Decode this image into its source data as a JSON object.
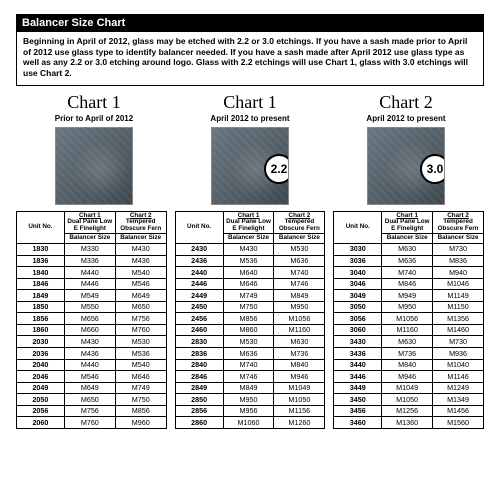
{
  "title": "Balancer Size Chart",
  "intro": "Beginning in April of 2012, glass may be etched with 2.2 or 3.0 etchings. If you have a sash made prior to April of 2012 use glass type to identify balancer needed. If you have a sash made after April 2012 use glass type as well as any 2.2 or 3.0 etching around logo. Glass with 2.2 etchings will use Chart 1, glass with 3.0 etchings will use Chart 2.",
  "chart_cards": [
    {
      "title": "Chart 1",
      "sub": "Prior to April of 2012",
      "badge": ""
    },
    {
      "title": "Chart 1",
      "sub": "April 2012 to present",
      "badge": "2.2"
    },
    {
      "title": "Chart 2",
      "sub": "April 2012 to present",
      "badge": "3.0"
    }
  ],
  "header": {
    "unit": "Unit No.",
    "chart1_top": "Chart 1",
    "chart2_top": "Chart 2",
    "chart1_desc": "Dual Pane Low E Finelight",
    "chart2_desc": "Tempered Obscure Fern",
    "bal": "Balancer Size"
  },
  "groups": [
    {
      "rows": [
        {
          "u": "1830",
          "a": "M330",
          "b": "M430"
        },
        {
          "u": "1836",
          "a": "M336",
          "b": "M436"
        },
        {
          "u": "1840",
          "a": "M440",
          "b": "M540"
        },
        {
          "u": "1846",
          "a": "M446",
          "b": "M546"
        },
        {
          "u": "1849",
          "a": "M549",
          "b": "M649"
        },
        {
          "u": "1850",
          "a": "M550",
          "b": "M650"
        },
        {
          "u": "1856",
          "a": "M656",
          "b": "M756"
        },
        {
          "u": "1860",
          "a": "M660",
          "b": "M760"
        },
        {
          "u": "2030",
          "a": "M430",
          "b": "M530"
        },
        {
          "u": "2036",
          "a": "M436",
          "b": "M536"
        },
        {
          "u": "2040",
          "a": "M440",
          "b": "M540"
        },
        {
          "u": "2046",
          "a": "M546",
          "b": "M646"
        },
        {
          "u": "2049",
          "a": "M649",
          "b": "M749"
        },
        {
          "u": "2050",
          "a": "M650",
          "b": "M750"
        },
        {
          "u": "2056",
          "a": "M756",
          "b": "M856"
        },
        {
          "u": "2060",
          "a": "M760",
          "b": "M960"
        }
      ]
    },
    {
      "rows": [
        {
          "u": "2430",
          "a": "M430",
          "b": "M530"
        },
        {
          "u": "2436",
          "a": "M536",
          "b": "M636"
        },
        {
          "u": "2440",
          "a": "M640",
          "b": "M740"
        },
        {
          "u": "2446",
          "a": "M646",
          "b": "M746"
        },
        {
          "u": "2449",
          "a": "M749",
          "b": "M849"
        },
        {
          "u": "2450",
          "a": "M750",
          "b": "M950"
        },
        {
          "u": "2456",
          "a": "M856",
          "b": "M1056"
        },
        {
          "u": "2460",
          "a": "M860",
          "b": "M1160"
        },
        {
          "u": "2830",
          "a": "M530",
          "b": "M630"
        },
        {
          "u": "2836",
          "a": "M636",
          "b": "M736"
        },
        {
          "u": "2840",
          "a": "M740",
          "b": "M840"
        },
        {
          "u": "2846",
          "a": "M746",
          "b": "M946"
        },
        {
          "u": "2849",
          "a": "M849",
          "b": "M1049"
        },
        {
          "u": "2850",
          "a": "M950",
          "b": "M1050"
        },
        {
          "u": "2856",
          "a": "M956",
          "b": "M1156"
        },
        {
          "u": "2860",
          "a": "M1060",
          "b": "M1260"
        }
      ]
    },
    {
      "rows": [
        {
          "u": "3030",
          "a": "M630",
          "b": "M730"
        },
        {
          "u": "3036",
          "a": "M636",
          "b": "M836"
        },
        {
          "u": "3040",
          "a": "M740",
          "b": "M940"
        },
        {
          "u": "3046",
          "a": "M846",
          "b": "M1046"
        },
        {
          "u": "3049",
          "a": "M949",
          "b": "M1149"
        },
        {
          "u": "3050",
          "a": "M950",
          "b": "M1150"
        },
        {
          "u": "3056",
          "a": "M1056",
          "b": "M1356"
        },
        {
          "u": "3060",
          "a": "M1160",
          "b": "M1460"
        },
        {
          "u": "3430",
          "a": "M630",
          "b": "M730"
        },
        {
          "u": "3436",
          "a": "M736",
          "b": "M936"
        },
        {
          "u": "3440",
          "a": "M840",
          "b": "M1040"
        },
        {
          "u": "3446",
          "a": "M946",
          "b": "M1146"
        },
        {
          "u": "3449",
          "a": "M1049",
          "b": "M1249"
        },
        {
          "u": "3450",
          "a": "M1050",
          "b": "M1349"
        },
        {
          "u": "3456",
          "a": "M1256",
          "b": "M1456"
        },
        {
          "u": "3460",
          "a": "M1360",
          "b": "M1560"
        }
      ]
    }
  ],
  "colors": {
    "title_bg": "#000000",
    "title_fg": "#ffffff",
    "border": "#000000",
    "glass_bg": "#5a6670"
  }
}
